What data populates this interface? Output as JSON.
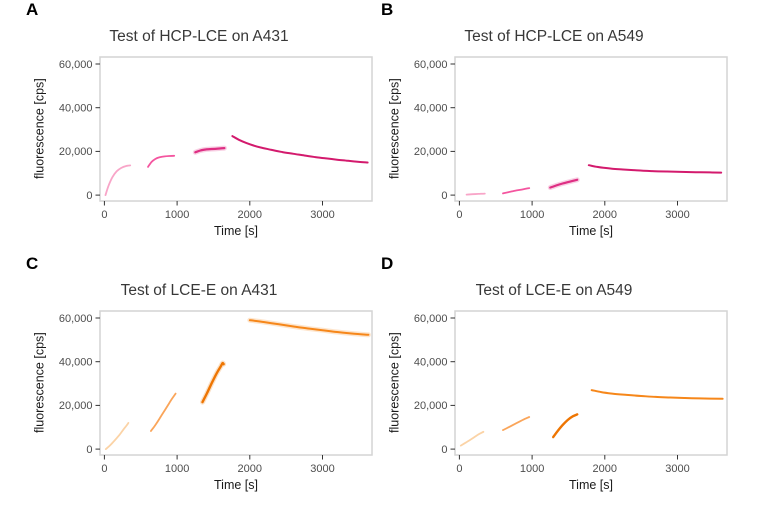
{
  "figure": {
    "background": "#ffffff",
    "panel_border_color": "#d4d4d4",
    "tick_color": "#333333",
    "tick_label_color": "#4d4d4d",
    "title_color": "#383838",
    "axis_label_color": "#1a1a1a"
  },
  "chart_data": [
    {
      "type": "line",
      "panel_label": "A",
      "title": "Test of HCP-LCE on A431",
      "xlabel": "Time [s]",
      "ylabel": "fluorescence [cps]",
      "xlim": [
        -60,
        3680
      ],
      "ylim": [
        -2700,
        63200
      ],
      "x_ticks": [
        0,
        1000,
        2000,
        3000
      ],
      "x_tick_labels": [
        "0",
        "1000",
        "2000",
        "3000"
      ],
      "y_ticks": [
        0,
        20000,
        40000,
        60000
      ],
      "y_tick_labels": [
        "0",
        "20,000",
        "40,000",
        "60,000"
      ],
      "grid": false,
      "legend": "none",
      "series": [
        {
          "name": "segment 1",
          "color": "#F8A5C8",
          "halo": false,
          "width": 1.8,
          "points": [
            [
              15,
              0
            ],
            [
              60,
              4500
            ],
            [
              110,
              8200
            ],
            [
              170,
              10900
            ],
            [
              230,
              12400
            ],
            [
              300,
              13300
            ],
            [
              355,
              13600
            ]
          ]
        },
        {
          "name": "segment 2",
          "color": "#F4559F",
          "halo": false,
          "width": 1.8,
          "points": [
            [
              600,
              12900
            ],
            [
              650,
              15200
            ],
            [
              700,
              16500
            ],
            [
              760,
              17300
            ],
            [
              830,
              17700
            ],
            [
              900,
              17900
            ],
            [
              960,
              18000
            ]
          ]
        },
        {
          "name": "segment 3",
          "color": "#DE2E83",
          "halo": true,
          "width": 2.2,
          "points": [
            [
              1250,
              19600
            ],
            [
              1320,
              20400
            ],
            [
              1400,
              20900
            ],
            [
              1480,
              21100
            ],
            [
              1560,
              21300
            ],
            [
              1650,
              21500
            ]
          ]
        },
        {
          "name": "segment 4",
          "color": "#D31A6D",
          "halo": false,
          "width": 2.0,
          "points": [
            [
              1760,
              27000
            ],
            [
              1850,
              25300
            ],
            [
              1950,
              23900
            ],
            [
              2050,
              22700
            ],
            [
              2150,
              21800
            ],
            [
              2300,
              20700
            ],
            [
              2450,
              19700
            ],
            [
              2600,
              18900
            ],
            [
              2750,
              18100
            ],
            [
              2900,
              17400
            ],
            [
              3050,
              16800
            ],
            [
              3200,
              16200
            ],
            [
              3350,
              15700
            ],
            [
              3500,
              15200
            ],
            [
              3620,
              14900
            ]
          ]
        }
      ]
    },
    {
      "type": "line",
      "panel_label": "B",
      "title": "Test of HCP-LCE on A549",
      "xlabel": "Time [s]",
      "ylabel": "fluorescence [cps]",
      "xlim": [
        -60,
        3680
      ],
      "ylim": [
        -2700,
        63200
      ],
      "x_ticks": [
        0,
        1000,
        2000,
        3000
      ],
      "x_tick_labels": [
        "0",
        "1000",
        "2000",
        "3000"
      ],
      "y_ticks": [
        0,
        20000,
        40000,
        60000
      ],
      "y_tick_labels": [
        "0",
        "20,000",
        "40,000",
        "60,000"
      ],
      "grid": false,
      "legend": "none",
      "series": [
        {
          "name": "segment 1",
          "color": "#F8A5C8",
          "halo": false,
          "width": 1.8,
          "points": [
            [
              100,
              250
            ],
            [
              180,
              400
            ],
            [
              260,
              550
            ],
            [
              350,
              700
            ]
          ]
        },
        {
          "name": "segment 2",
          "color": "#F4559F",
          "halo": false,
          "width": 1.8,
          "points": [
            [
              600,
              800
            ],
            [
              700,
              1500
            ],
            [
              800,
              2200
            ],
            [
              880,
              2700
            ],
            [
              960,
              3200
            ]
          ]
        },
        {
          "name": "segment 3",
          "color": "#DE2E83",
          "halo": true,
          "width": 2.2,
          "points": [
            [
              1250,
              3500
            ],
            [
              1330,
              4400
            ],
            [
              1420,
              5300
            ],
            [
              1510,
              6100
            ],
            [
              1620,
              7000
            ]
          ]
        },
        {
          "name": "segment 4",
          "color": "#D31A6D",
          "halo": false,
          "width": 2.0,
          "points": [
            [
              1780,
              13700
            ],
            [
              1880,
              13000
            ],
            [
              1980,
              12500
            ],
            [
              2100,
              12100
            ],
            [
              2250,
              11700
            ],
            [
              2450,
              11300
            ],
            [
              2650,
              11000
            ],
            [
              2850,
              10800
            ],
            [
              3050,
              10600
            ],
            [
              3250,
              10500
            ],
            [
              3450,
              10400
            ],
            [
              3600,
              10300
            ]
          ]
        }
      ]
    },
    {
      "type": "line",
      "panel_label": "C",
      "title": "Test of LCE-E on A431",
      "xlabel": "Time [s]",
      "ylabel": "fluorescence [cps]",
      "xlim": [
        -60,
        3680
      ],
      "ylim": [
        -2700,
        63200
      ],
      "x_ticks": [
        0,
        1000,
        2000,
        3000
      ],
      "x_tick_labels": [
        "0",
        "1000",
        "2000",
        "3000"
      ],
      "y_ticks": [
        0,
        20000,
        40000,
        60000
      ],
      "y_tick_labels": [
        "0",
        "20,000",
        "40,000",
        "60,000"
      ],
      "grid": false,
      "legend": "none",
      "series": [
        {
          "name": "segment 1",
          "color": "#FBD3A6",
          "halo": false,
          "width": 1.8,
          "points": [
            [
              20,
              0
            ],
            [
              80,
              1800
            ],
            [
              140,
              3900
            ],
            [
              200,
              6200
            ],
            [
              260,
              8900
            ],
            [
              310,
              11000
            ],
            [
              330,
              12000
            ]
          ]
        },
        {
          "name": "segment 2",
          "color": "#FAA55A",
          "halo": false,
          "width": 1.8,
          "points": [
            [
              640,
              8300
            ],
            [
              700,
              11000
            ],
            [
              760,
              14000
            ],
            [
              820,
              17200
            ],
            [
              880,
              20400
            ],
            [
              930,
              23000
            ],
            [
              980,
              25400
            ]
          ]
        },
        {
          "name": "segment 3",
          "color": "#EE7502",
          "halo": true,
          "width": 2.4,
          "points": [
            [
              1350,
              21500
            ],
            [
              1410,
              25500
            ],
            [
              1460,
              29000
            ],
            [
              1510,
              32500
            ],
            [
              1560,
              35600
            ],
            [
              1600,
              37800
            ],
            [
              1625,
              39300
            ],
            [
              1640,
              38900
            ]
          ]
        },
        {
          "name": "segment 4",
          "color": "#F6871A",
          "halo": true,
          "width": 2.0,
          "points": [
            [
              2000,
              59000
            ],
            [
              2200,
              58100
            ],
            [
              2400,
              57100
            ],
            [
              2600,
              56100
            ],
            [
              2800,
              55200
            ],
            [
              3000,
              54400
            ],
            [
              3200,
              53600
            ],
            [
              3400,
              52900
            ],
            [
              3630,
              52300
            ]
          ]
        }
      ]
    },
    {
      "type": "line",
      "panel_label": "D",
      "title": "Test of LCE-E on A549",
      "xlabel": "Time [s]",
      "ylabel": "fluorescence [cps]",
      "xlim": [
        -60,
        3680
      ],
      "ylim": [
        -2700,
        63200
      ],
      "x_ticks": [
        0,
        1000,
        2000,
        3000
      ],
      "x_tick_labels": [
        "0",
        "1000",
        "2000",
        "3000"
      ],
      "y_ticks": [
        0,
        20000,
        40000,
        60000
      ],
      "y_tick_labels": [
        "0",
        "20,000",
        "40,000",
        "60,000"
      ],
      "grid": false,
      "legend": "none",
      "series": [
        {
          "name": "segment 1",
          "color": "#FBD3A6",
          "halo": false,
          "width": 1.8,
          "points": [
            [
              20,
              1600
            ],
            [
              100,
              3200
            ],
            [
              180,
              4900
            ],
            [
              260,
              6700
            ],
            [
              330,
              7900
            ]
          ]
        },
        {
          "name": "segment 2",
          "color": "#FAA55A",
          "halo": false,
          "width": 1.8,
          "points": [
            [
              600,
              8700
            ],
            [
              690,
              10200
            ],
            [
              780,
              11800
            ],
            [
              870,
              13300
            ],
            [
              960,
              14700
            ]
          ]
        },
        {
          "name": "segment 3",
          "color": "#EE7502",
          "halo": false,
          "width": 2.4,
          "points": [
            [
              1290,
              5500
            ],
            [
              1350,
              8200
            ],
            [
              1420,
              11000
            ],
            [
              1490,
              13300
            ],
            [
              1560,
              15000
            ],
            [
              1620,
              15900
            ]
          ]
        },
        {
          "name": "segment 4",
          "color": "#F6871A",
          "halo": false,
          "width": 2.0,
          "points": [
            [
              1820,
              27000
            ],
            [
              1950,
              26100
            ],
            [
              2100,
              25400
            ],
            [
              2300,
              24800
            ],
            [
              2500,
              24300
            ],
            [
              2700,
              23900
            ],
            [
              2900,
              23600
            ],
            [
              3100,
              23400
            ],
            [
              3300,
              23200
            ],
            [
              3620,
              23000
            ]
          ]
        }
      ]
    }
  ]
}
